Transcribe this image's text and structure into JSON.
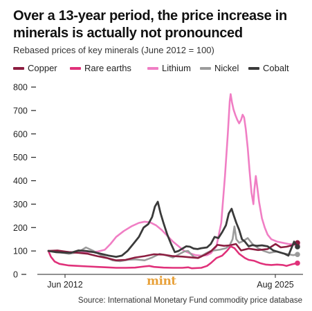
{
  "header": {
    "title": "Over a 13-year period, the price increase in minerals is actually not pronounced",
    "subtitle": "Rebased prices of key minerals (June 2012 = 100)"
  },
  "branding": {
    "logo_text": "mint"
  },
  "footer": {
    "source": "Source: International Monetary Fund commodity price database"
  },
  "chart_data": {
    "type": "line",
    "title": "Over a 13-year period, the price increase in minerals is actually not pronounced",
    "subtitle": "Rebased prices of key minerals (June 2012 = 100)",
    "xlabel": "",
    "ylabel": "",
    "x_range": [
      2012.42,
      2025.58
    ],
    "x_ticks": [
      {
        "label": "Jun 2012",
        "x": 2012.42
      },
      {
        "label": "Aug 2025",
        "x": 2025.58
      }
    ],
    "ylim": [
      0,
      800
    ],
    "y_ticks": [
      0,
      100,
      200,
      300,
      400,
      500,
      600,
      700,
      800
    ],
    "grid": false,
    "legend": "top",
    "series": [
      {
        "name": "Copper",
        "color": "#8c1d40",
        "points": [
          [
            2012.42,
            100
          ],
          [
            2012.9,
            102
          ],
          [
            2013.5,
            95
          ],
          [
            2014,
            92
          ],
          [
            2014.5,
            88
          ],
          [
            2015,
            78
          ],
          [
            2015.5,
            70
          ],
          [
            2016,
            60
          ],
          [
            2016.5,
            62
          ],
          [
            2017,
            72
          ],
          [
            2017.5,
            78
          ],
          [
            2018,
            86
          ],
          [
            2018.5,
            84
          ],
          [
            2019,
            78
          ],
          [
            2019.5,
            76
          ],
          [
            2020,
            72
          ],
          [
            2020.33,
            70
          ],
          [
            2020.7,
            84
          ],
          [
            2021,
            98
          ],
          [
            2021.35,
            126
          ],
          [
            2021.7,
            122
          ],
          [
            2022,
            124
          ],
          [
            2022.33,
            130
          ],
          [
            2022.6,
            102
          ],
          [
            2023,
            110
          ],
          [
            2023.5,
            104
          ],
          [
            2024,
            108
          ],
          [
            2024.42,
            130
          ],
          [
            2024.7,
            115
          ],
          [
            2025,
            118
          ],
          [
            2025.3,
            124
          ],
          [
            2025.58,
            135
          ]
        ]
      },
      {
        "name": "Rare earths",
        "color": "#e0317a",
        "points": [
          [
            2012.42,
            100
          ],
          [
            2012.55,
            75
          ],
          [
            2012.75,
            55
          ],
          [
            2013,
            45
          ],
          [
            2013.5,
            38
          ],
          [
            2014,
            36
          ],
          [
            2014.5,
            34
          ],
          [
            2015,
            32
          ],
          [
            2015.5,
            30
          ],
          [
            2016,
            28
          ],
          [
            2016.5,
            28
          ],
          [
            2017,
            29
          ],
          [
            2017.5,
            34
          ],
          [
            2017.75,
            36
          ],
          [
            2018,
            32
          ],
          [
            2018.5,
            29
          ],
          [
            2019,
            28
          ],
          [
            2019.5,
            28
          ],
          [
            2019.8,
            30
          ],
          [
            2020,
            26
          ],
          [
            2020.5,
            28
          ],
          [
            2020.8,
            36
          ],
          [
            2021,
            48
          ],
          [
            2021.3,
            70
          ],
          [
            2021.6,
            80
          ],
          [
            2021.85,
            100
          ],
          [
            2022.05,
            120
          ],
          [
            2022.25,
            112
          ],
          [
            2022.5,
            88
          ],
          [
            2022.8,
            70
          ],
          [
            2023,
            62
          ],
          [
            2023.3,
            58
          ],
          [
            2023.6,
            48
          ],
          [
            2023.9,
            42
          ],
          [
            2024.2,
            40
          ],
          [
            2024.5,
            42
          ],
          [
            2024.8,
            40
          ],
          [
            2025,
            36
          ],
          [
            2025.3,
            43
          ],
          [
            2025.58,
            48
          ]
        ]
      },
      {
        "name": "Lithium",
        "color": "#f07ec4",
        "points": [
          [
            2012.42,
            100
          ],
          [
            2013,
            98
          ],
          [
            2013.5,
            96
          ],
          [
            2014,
            95
          ],
          [
            2014.5,
            95
          ],
          [
            2015,
            97
          ],
          [
            2015.4,
            105
          ],
          [
            2015.7,
            130
          ],
          [
            2016,
            160
          ],
          [
            2016.4,
            185
          ],
          [
            2016.8,
            205
          ],
          [
            2017.2,
            220
          ],
          [
            2017.5,
            225
          ],
          [
            2017.8,
            222
          ],
          [
            2018.1,
            210
          ],
          [
            2018.4,
            190
          ],
          [
            2018.7,
            165
          ],
          [
            2019,
            140
          ],
          [
            2019.3,
            120
          ],
          [
            2019.6,
            100
          ],
          [
            2019.9,
            90
          ],
          [
            2020.2,
            82
          ],
          [
            2020.5,
            80
          ],
          [
            2020.8,
            82
          ],
          [
            2021,
            90
          ],
          [
            2021.3,
            120
          ],
          [
            2021.55,
            220
          ],
          [
            2021.75,
            420
          ],
          [
            2021.9,
            600
          ],
          [
            2022.0,
            740
          ],
          [
            2022.05,
            770
          ],
          [
            2022.12,
            735
          ],
          [
            2022.2,
            705
          ],
          [
            2022.3,
            680
          ],
          [
            2022.4,
            660
          ],
          [
            2022.5,
            645
          ],
          [
            2022.6,
            660
          ],
          [
            2022.68,
            682
          ],
          [
            2022.76,
            670
          ],
          [
            2022.85,
            620
          ],
          [
            2022.95,
            540
          ],
          [
            2023.05,
            440
          ],
          [
            2023.15,
            350
          ],
          [
            2023.25,
            300
          ],
          [
            2023.3,
            360
          ],
          [
            2023.38,
            420
          ],
          [
            2023.46,
            370
          ],
          [
            2023.55,
            310
          ],
          [
            2023.7,
            240
          ],
          [
            2023.85,
            200
          ],
          [
            2024.0,
            170
          ],
          [
            2024.2,
            150
          ],
          [
            2024.5,
            140
          ],
          [
            2024.8,
            135
          ],
          [
            2025.1,
            130
          ],
          [
            2025.35,
            128
          ],
          [
            2025.58,
            125
          ]
        ]
      },
      {
        "name": "Nickel",
        "color": "#9b9b9b",
        "points": [
          [
            2012.42,
            100
          ],
          [
            2013,
            95
          ],
          [
            2013.5,
            88
          ],
          [
            2014,
            95
          ],
          [
            2014.4,
            115
          ],
          [
            2014.8,
            100
          ],
          [
            2015.3,
            78
          ],
          [
            2015.8,
            60
          ],
          [
            2016.2,
            56
          ],
          [
            2016.6,
            62
          ],
          [
            2017,
            64
          ],
          [
            2017.5,
            60
          ],
          [
            2017.9,
            72
          ],
          [
            2018.3,
            88
          ],
          [
            2018.7,
            80
          ],
          [
            2019,
            72
          ],
          [
            2019.6,
            98
          ],
          [
            2019.8,
            100
          ],
          [
            2020.1,
            75
          ],
          [
            2020.3,
            70
          ],
          [
            2020.7,
            88
          ],
          [
            2021,
            100
          ],
          [
            2021.5,
            106
          ],
          [
            2021.8,
            112
          ],
          [
            2022.0,
            125
          ],
          [
            2022.15,
            150
          ],
          [
            2022.25,
            205
          ],
          [
            2022.35,
            150
          ],
          [
            2022.5,
            135
          ],
          [
            2022.7,
            142
          ],
          [
            2022.95,
            155
          ],
          [
            2023.2,
            130
          ],
          [
            2023.5,
            112
          ],
          [
            2023.8,
            100
          ],
          [
            2024.1,
            92
          ],
          [
            2024.5,
            98
          ],
          [
            2024.8,
            90
          ],
          [
            2025.1,
            86
          ],
          [
            2025.35,
            82
          ],
          [
            2025.58,
            85
          ]
        ]
      },
      {
        "name": "Cobalt",
        "color": "#3a3a3a",
        "points": [
          [
            2012.42,
            100
          ],
          [
            2012.8,
            95
          ],
          [
            2013.2,
            93
          ],
          [
            2013.6,
            92
          ],
          [
            2014,
            102
          ],
          [
            2014.4,
            100
          ],
          [
            2014.8,
            95
          ],
          [
            2015.2,
            88
          ],
          [
            2015.6,
            80
          ],
          [
            2016,
            75
          ],
          [
            2016.3,
            80
          ],
          [
            2016.6,
            100
          ],
          [
            2016.9,
            130
          ],
          [
            2017.2,
            160
          ],
          [
            2017.45,
            200
          ],
          [
            2017.7,
            215
          ],
          [
            2017.9,
            245
          ],
          [
            2018.05,
            290
          ],
          [
            2018.2,
            310
          ],
          [
            2018.35,
            260
          ],
          [
            2018.5,
            220
          ],
          [
            2018.7,
            170
          ],
          [
            2018.9,
            130
          ],
          [
            2019.1,
            95
          ],
          [
            2019.3,
            100
          ],
          [
            2019.5,
            110
          ],
          [
            2019.7,
            120
          ],
          [
            2019.9,
            118
          ],
          [
            2020.1,
            110
          ],
          [
            2020.3,
            108
          ],
          [
            2020.5,
            112
          ],
          [
            2020.8,
            115
          ],
          [
            2021,
            130
          ],
          [
            2021.2,
            160
          ],
          [
            2021.4,
            155
          ],
          [
            2021.6,
            180
          ],
          [
            2021.8,
            210
          ],
          [
            2021.95,
            260
          ],
          [
            2022.1,
            280
          ],
          [
            2022.2,
            255
          ],
          [
            2022.35,
            220
          ],
          [
            2022.5,
            190
          ],
          [
            2022.65,
            150
          ],
          [
            2022.8,
            140
          ],
          [
            2023,
            120
          ],
          [
            2023.2,
            125
          ],
          [
            2023.45,
            122
          ],
          [
            2023.7,
            124
          ],
          [
            2024,
            120
          ],
          [
            2024.3,
            102
          ],
          [
            2024.6,
            95
          ],
          [
            2024.9,
            88
          ],
          [
            2025.1,
            80
          ],
          [
            2025.25,
            110
          ],
          [
            2025.4,
            140
          ],
          [
            2025.58,
            118
          ]
        ]
      }
    ]
  }
}
